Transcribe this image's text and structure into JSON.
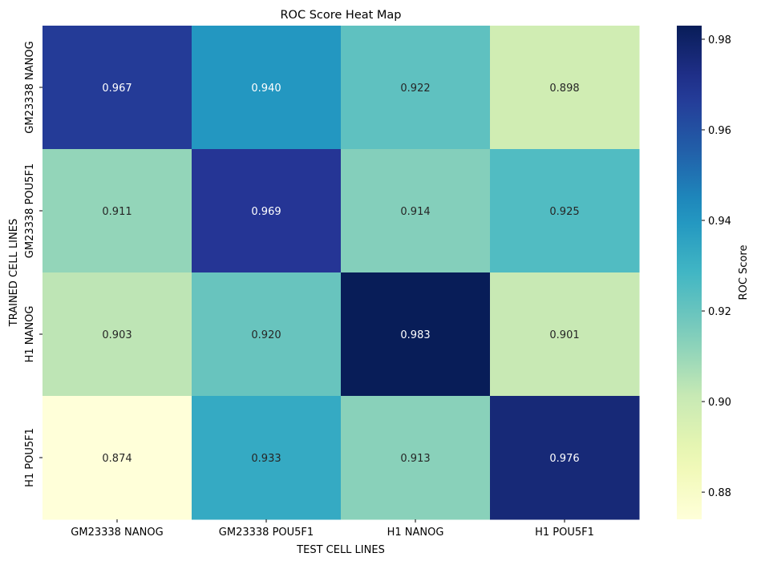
{
  "chart_data": {
    "type": "heatmap",
    "title": "ROC Score Heat Map",
    "xlabel": "TEST CELL LINES",
    "ylabel": "TRAINED CELL LINES",
    "x_categories": [
      "GM23338 NANOG",
      "GM23338 POU5F1",
      "H1 NANOG",
      "H1 POU5F1"
    ],
    "y_categories": [
      "GM23338 NANOG",
      "GM23338 POU5F1",
      "H1 NANOG",
      "H1 POU5F1"
    ],
    "values": [
      [
        0.967,
        0.94,
        0.922,
        0.898
      ],
      [
        0.911,
        0.969,
        0.914,
        0.925
      ],
      [
        0.903,
        0.92,
        0.983,
        0.901
      ],
      [
        0.874,
        0.933,
        0.913,
        0.976
      ]
    ],
    "value_labels": [
      [
        "0.967",
        "0.940",
        "0.922",
        "0.898"
      ],
      [
        "0.911",
        "0.969",
        "0.914",
        "0.925"
      ],
      [
        "0.903",
        "0.920",
        "0.983",
        "0.901"
      ],
      [
        "0.874",
        "0.933",
        "0.913",
        "0.976"
      ]
    ],
    "colorbar": {
      "label": "ROC Score",
      "range": [
        0.874,
        0.983
      ],
      "ticks": [
        0.88,
        0.9,
        0.92,
        0.94,
        0.96,
        0.98
      ],
      "tick_labels": [
        "0.88",
        "0.90",
        "0.92",
        "0.94",
        "0.96",
        "0.98"
      ],
      "colormap": "YlGnBu"
    },
    "grid": false
  }
}
